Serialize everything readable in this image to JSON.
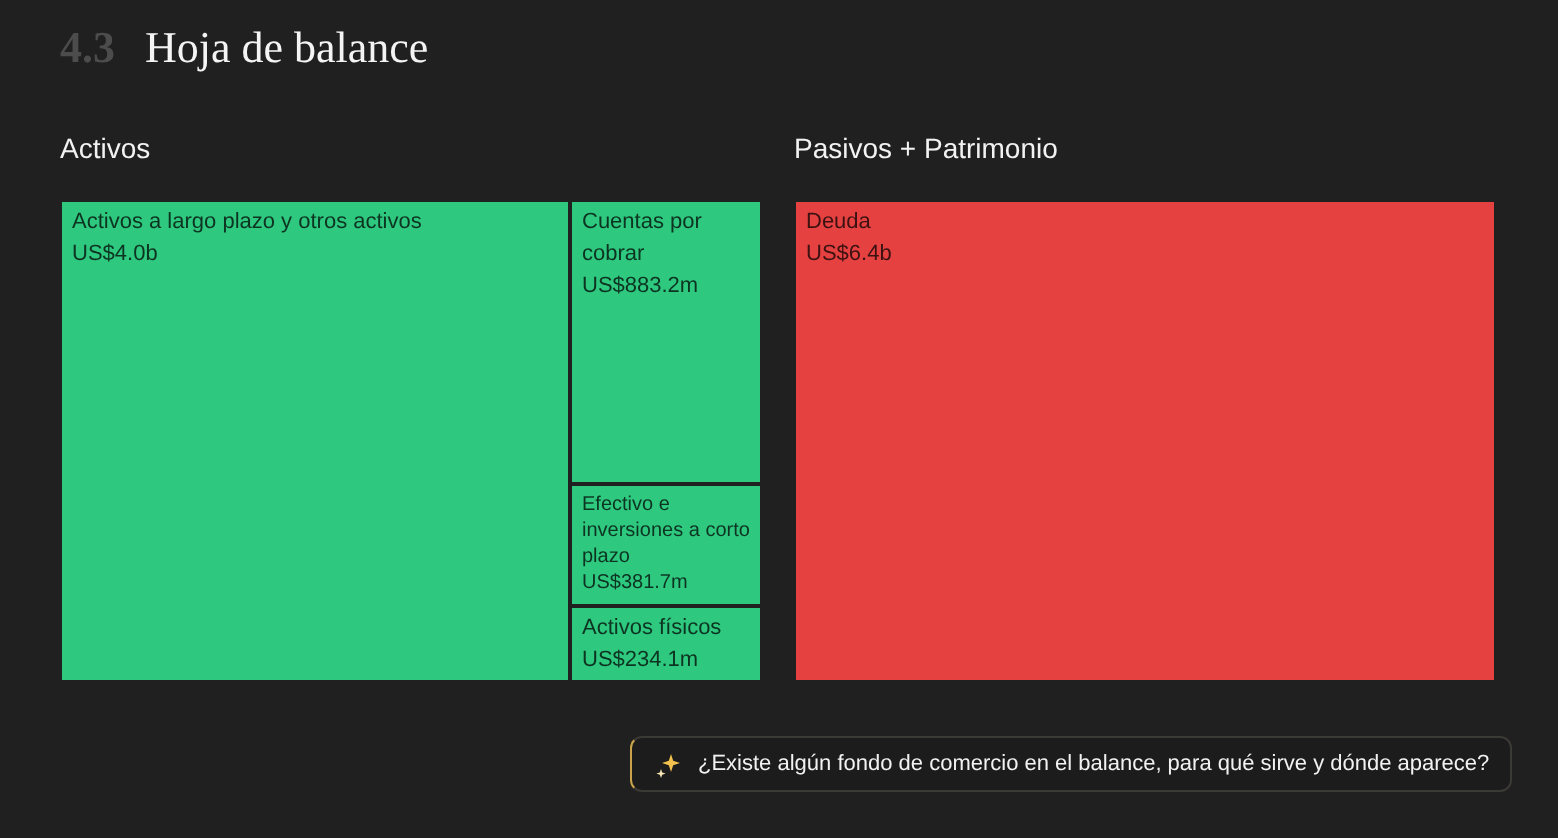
{
  "chart_data": [
    {
      "type": "other",
      "title": "Hoja de balance",
      "subtitle": "4.3",
      "annotations": [
        "¿Existe algún fondo de comercio en el balance, para qué sirve y dónde aparece?"
      ]
    },
    {
      "type": "other",
      "title": "Activos",
      "categories": [
        "Activos a largo plazo y otros activos",
        "Cuentas por cobrar",
        "Efectivo e inversiones a corto plazo",
        "Activos físicos"
      ],
      "values": [
        4000000000,
        883200000,
        381700000,
        234100000
      ],
      "value_labels": [
        "US$4.0b",
        "US$883.2m",
        "US$381.7m",
        "US$234.1m"
      ],
      "color": "#2ec87f"
    },
    {
      "type": "other",
      "title": "Pasivos + Patrimonio",
      "categories": [
        "Deuda"
      ],
      "values": [
        6400000000
      ],
      "value_labels": [
        "US$6.4b"
      ],
      "color": "#e64141"
    }
  ]
}
